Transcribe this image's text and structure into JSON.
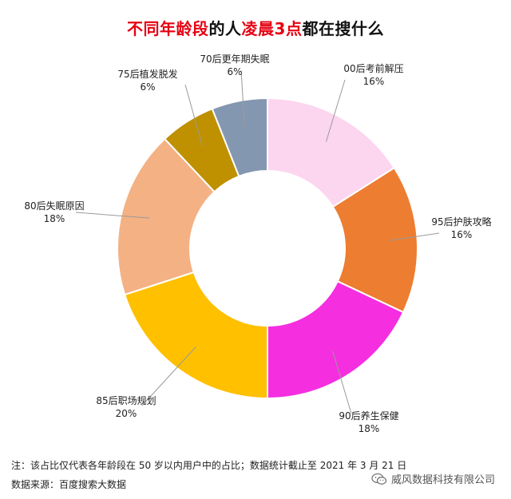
{
  "title": {
    "part1": "不同年龄段",
    "part2": "的人",
    "part3": "凌晨3点",
    "part4": "都在搜什么"
  },
  "colors": {
    "title_accent": "#e60012",
    "title_text": "#111111"
  },
  "chart_data": {
    "type": "pie",
    "variant": "donut",
    "title": "不同年龄段的人凌晨3点都在搜什么",
    "unit": "%",
    "slices": [
      {
        "label": "00后考前解压",
        "value": 16,
        "value_label": "16%",
        "color": "#fcd5ef"
      },
      {
        "label": "95后护肤攻略",
        "value": 16,
        "value_label": "16%",
        "color": "#ed7d31"
      },
      {
        "label": "90后养生保健",
        "value": 18,
        "value_label": "18%",
        "color": "#f52ee0"
      },
      {
        "label": "85后职场规划",
        "value": 20,
        "value_label": "20%",
        "color": "#ffc000"
      },
      {
        "label": "80后失眠原因",
        "value": 18,
        "value_label": "18%",
        "color": "#f4b183"
      },
      {
        "label": "75后植发脱发",
        "value": 6,
        "value_label": "6%",
        "color": "#bf9000"
      },
      {
        "label": "70后更年期失眠",
        "value": 6,
        "value_label": "6%",
        "color": "#8497b0"
      }
    ]
  },
  "footer": {
    "note": "注：该占比仅代表各年龄段在 50 岁以内用户中的占比；数据统计截止至 2021 年 3 月 21 日",
    "source": "数据来源：百度搜索大数据",
    "watermark": "威风数据科技有限公司",
    "watermark_icon": "wechat-icon"
  }
}
